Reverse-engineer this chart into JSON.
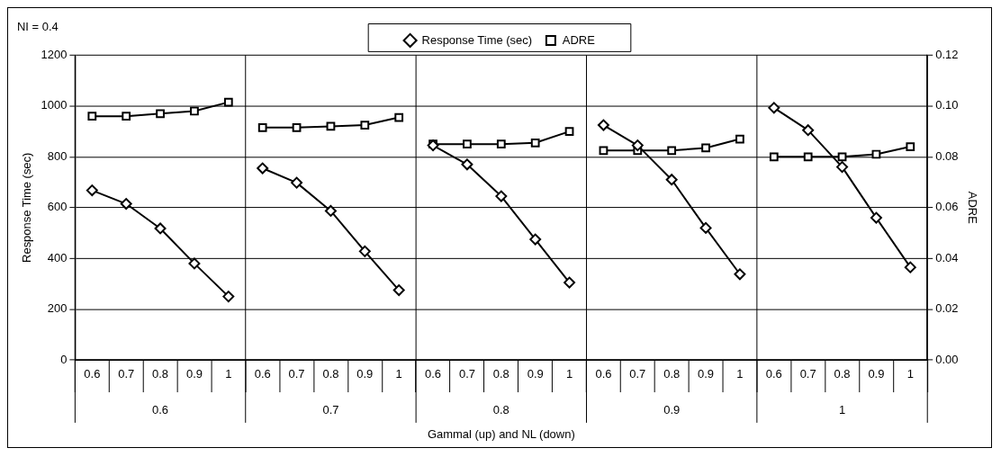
{
  "chart_data": {
    "type": "line",
    "title": "NI = 0.4",
    "xlabel": "Gammal (up) and NL (down)",
    "ylabel": "Response Time (sec)",
    "y2label": "ADRE",
    "categories": [
      "0.6",
      "0.7",
      "0.8",
      "0.9",
      "1",
      "0.6",
      "0.7",
      "0.8",
      "0.9",
      "1",
      "0.6",
      "0.7",
      "0.8",
      "0.9",
      "1",
      "0.6",
      "0.7",
      "0.8",
      "0.9",
      "1",
      "0.6",
      "0.7",
      "0.8",
      "0.9",
      "1"
    ],
    "annotations": [
      "0.6",
      "0.7",
      "0.8",
      "0.9",
      "1"
    ],
    "series": [
      {
        "name": "Response Time (sec)",
        "color": "#000000",
        "marker": "diamond",
        "values": [
          668,
          615,
          518,
          380,
          250,
          755,
          698,
          587,
          428,
          275,
          845,
          770,
          645,
          475,
          305,
          925,
          845,
          710,
          520,
          338,
          993,
          905,
          760,
          560,
          365
        ]
      },
      {
        "name": "ADRE",
        "color": "#000000",
        "marker": "square",
        "axis": "y2",
        "values": [
          0.096,
          0.096,
          0.097,
          0.098,
          0.1015,
          0.0915,
          0.0915,
          0.092,
          0.0925,
          0.0955,
          0.085,
          0.085,
          0.085,
          0.0855,
          0.09,
          0.0825,
          0.0825,
          0.0825,
          0.0835,
          0.087,
          0.08,
          0.08,
          0.08,
          0.081,
          0.084
        ]
      }
    ],
    "ylim": [
      0,
      1200
    ],
    "yticks": [
      0,
      200,
      400,
      600,
      800,
      1000,
      1200
    ],
    "y2lim": [
      0,
      0.12
    ],
    "y2ticks": [
      {
        "value": 0,
        "label": "0.00"
      },
      {
        "value": 0.02,
        "label": "0.02"
      },
      {
        "value": 0.04,
        "label": "0.04"
      },
      {
        "value": 0.06,
        "label": "0.06"
      },
      {
        "value": 0.08,
        "label": "0.08"
      },
      {
        "value": 0.1,
        "label": "0.10"
      },
      {
        "value": 0.12,
        "label": "0.12"
      }
    ],
    "grid": "y",
    "legend": "top",
    "line_style": "solid"
  }
}
